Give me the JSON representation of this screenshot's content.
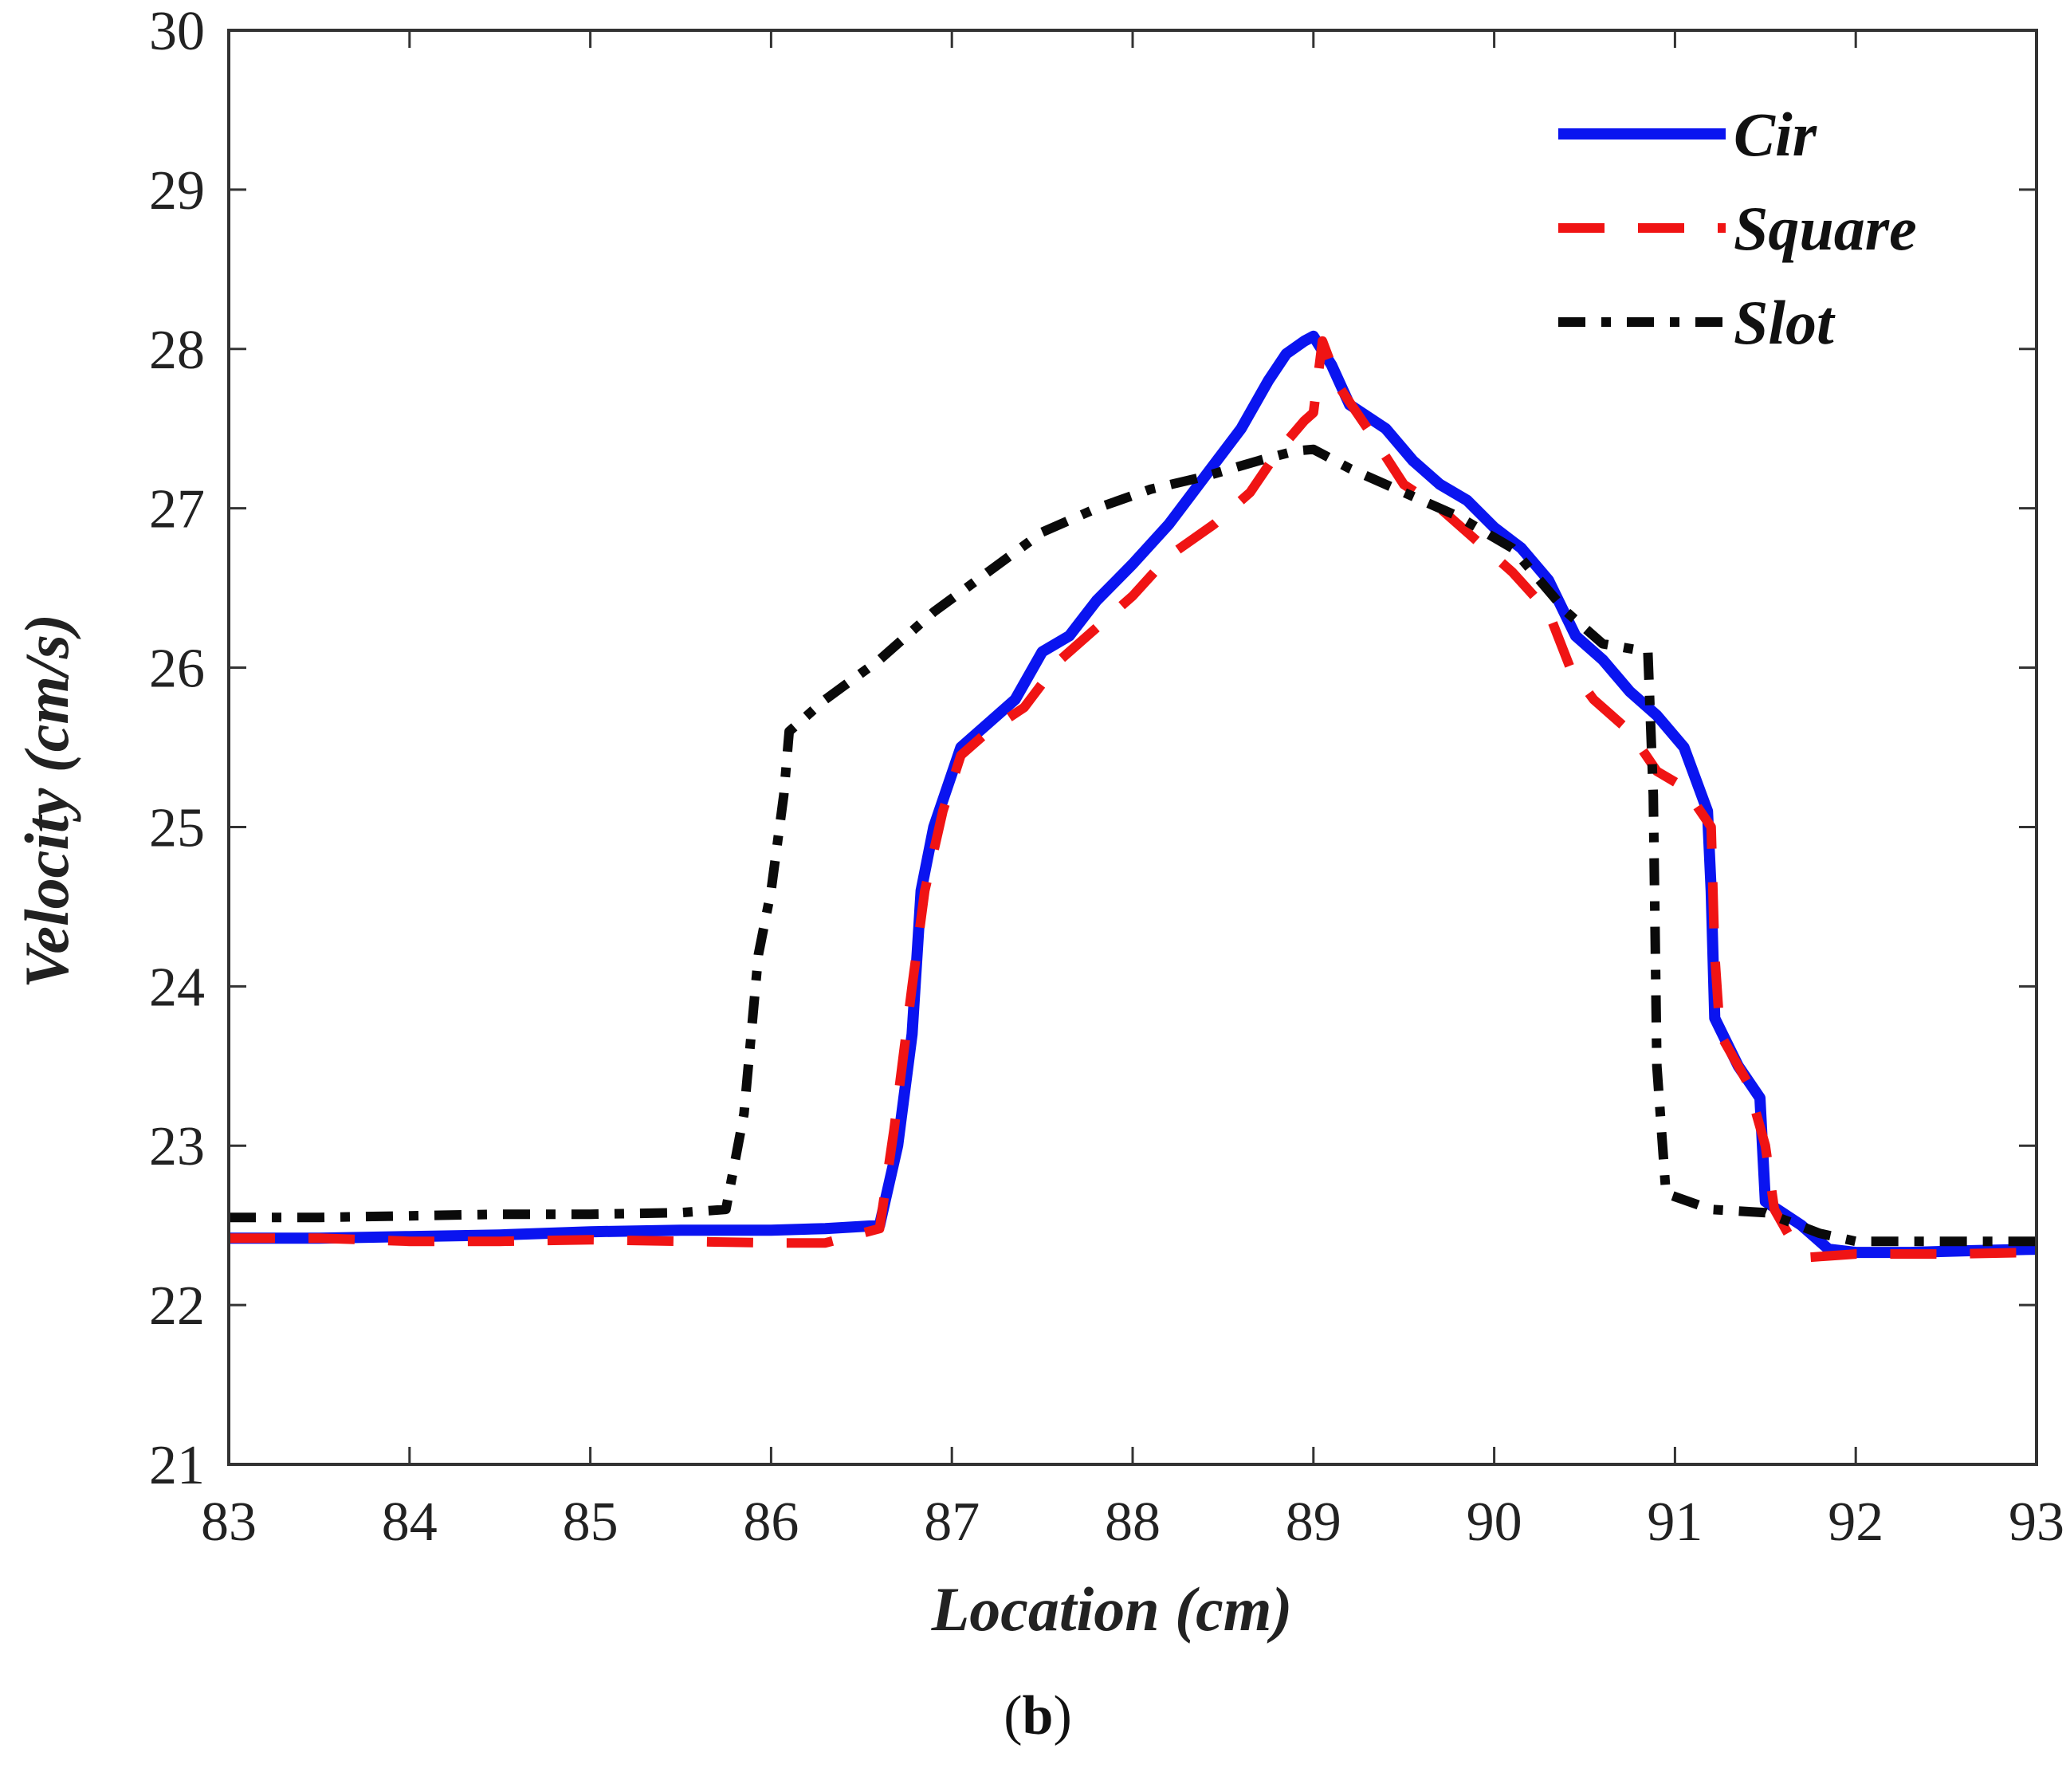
{
  "chart_data": {
    "type": "line",
    "title": "",
    "xlabel": "Location (cm)",
    "ylabel": "Velocity (cm/s)",
    "xlim": [
      83,
      93
    ],
    "ylim": [
      21,
      30
    ],
    "xticks": [
      "83",
      "84",
      "85",
      "86",
      "87",
      "88",
      "89",
      "90",
      "91",
      "92",
      "93"
    ],
    "yticks": [
      "21",
      "22",
      "23",
      "24",
      "25",
      "26",
      "27",
      "28",
      "29",
      "30"
    ],
    "legend_position": "top-right",
    "panel_label_prefix": "(",
    "panel_label_letter": "b",
    "panel_label_suffix": ")",
    "series": [
      {
        "name": "Cir",
        "color": "#0a14f0",
        "style": "solid",
        "points": [
          [
            83,
            22.42
          ],
          [
            83.5,
            22.42
          ],
          [
            84,
            22.43
          ],
          [
            84.5,
            22.44
          ],
          [
            85,
            22.46
          ],
          [
            85.5,
            22.47
          ],
          [
            86,
            22.47
          ],
          [
            86.3,
            22.48
          ],
          [
            86.6,
            22.5
          ],
          [
            86.7,
            23.0
          ],
          [
            86.78,
            23.7
          ],
          [
            86.83,
            24.6
          ],
          [
            86.9,
            25.0
          ],
          [
            87.05,
            25.5
          ],
          [
            87.2,
            25.65
          ],
          [
            87.35,
            25.8
          ],
          [
            87.5,
            26.1
          ],
          [
            87.65,
            26.2
          ],
          [
            87.8,
            26.42
          ],
          [
            88,
            26.65
          ],
          [
            88.2,
            26.9
          ],
          [
            88.4,
            27.2
          ],
          [
            88.6,
            27.5
          ],
          [
            88.75,
            27.8
          ],
          [
            88.85,
            27.97
          ],
          [
            88.95,
            28.05
          ],
          [
            89,
            28.08
          ],
          [
            89.1,
            27.9
          ],
          [
            89.2,
            27.65
          ],
          [
            89.4,
            27.5
          ],
          [
            89.55,
            27.3
          ],
          [
            89.7,
            27.15
          ],
          [
            89.85,
            27.05
          ],
          [
            90,
            26.88
          ],
          [
            90.15,
            26.75
          ],
          [
            90.3,
            26.55
          ],
          [
            90.45,
            26.2
          ],
          [
            90.6,
            26.05
          ],
          [
            90.75,
            25.85
          ],
          [
            90.9,
            25.7
          ],
          [
            91.05,
            25.5
          ],
          [
            91.18,
            25.1
          ],
          [
            91.2,
            24.6
          ],
          [
            91.22,
            23.8
          ],
          [
            91.35,
            23.5
          ],
          [
            91.47,
            23.3
          ],
          [
            91.5,
            22.65
          ],
          [
            91.7,
            22.5
          ],
          [
            91.85,
            22.35
          ],
          [
            92,
            22.33
          ],
          [
            92.3,
            22.33
          ],
          [
            92.6,
            22.34
          ],
          [
            93,
            22.35
          ]
        ]
      },
      {
        "name": "Square",
        "color": "#f01414",
        "style": "dashed",
        "points": [
          [
            83,
            22.42
          ],
          [
            83.5,
            22.42
          ],
          [
            84,
            22.4
          ],
          [
            84.5,
            22.4
          ],
          [
            85,
            22.41
          ],
          [
            85.5,
            22.4
          ],
          [
            86,
            22.39
          ],
          [
            86.3,
            22.39
          ],
          [
            86.6,
            22.48
          ],
          [
            86.68,
            23.1
          ],
          [
            86.78,
            24.0
          ],
          [
            86.85,
            24.6
          ],
          [
            86.95,
            25.1
          ],
          [
            87.05,
            25.45
          ],
          [
            87.2,
            25.6
          ],
          [
            87.4,
            25.75
          ],
          [
            87.6,
            26.05
          ],
          [
            87.8,
            26.25
          ],
          [
            88,
            26.45
          ],
          [
            88.2,
            26.7
          ],
          [
            88.45,
            26.9
          ],
          [
            88.65,
            27.1
          ],
          [
            88.8,
            27.35
          ],
          [
            88.95,
            27.55
          ],
          [
            89,
            27.6
          ],
          [
            89.05,
            28.05
          ],
          [
            89.15,
            27.75
          ],
          [
            89.3,
            27.5
          ],
          [
            89.5,
            27.15
          ],
          [
            89.7,
            27.0
          ],
          [
            89.9,
            26.8
          ],
          [
            90.1,
            26.6
          ],
          [
            90.3,
            26.35
          ],
          [
            90.42,
            26.0
          ],
          [
            90.55,
            25.8
          ],
          [
            90.75,
            25.6
          ],
          [
            90.9,
            25.35
          ],
          [
            91.05,
            25.25
          ],
          [
            91.2,
            25.0
          ],
          [
            91.22,
            24.2
          ],
          [
            91.25,
            23.7
          ],
          [
            91.4,
            23.4
          ],
          [
            91.5,
            23.0
          ],
          [
            91.55,
            22.6
          ],
          [
            91.65,
            22.4
          ],
          [
            91.75,
            22.3
          ],
          [
            92,
            22.32
          ],
          [
            92.5,
            22.32
          ],
          [
            93,
            22.33
          ]
        ]
      },
      {
        "name": "Slot",
        "color": "#0a0a0a",
        "style": "dash-dot",
        "points": [
          [
            83,
            22.55
          ],
          [
            83.5,
            22.55
          ],
          [
            84,
            22.56
          ],
          [
            84.5,
            22.57
          ],
          [
            85,
            22.57
          ],
          [
            85.5,
            22.58
          ],
          [
            85.75,
            22.6
          ],
          [
            85.85,
            23.2
          ],
          [
            85.93,
            24.2
          ],
          [
            86.0,
            24.6
          ],
          [
            86.07,
            25.2
          ],
          [
            86.1,
            25.6
          ],
          [
            86.3,
            25.8
          ],
          [
            86.6,
            26.05
          ],
          [
            86.9,
            26.35
          ],
          [
            87.2,
            26.6
          ],
          [
            87.5,
            26.85
          ],
          [
            87.8,
            27.0
          ],
          [
            88.1,
            27.12
          ],
          [
            88.4,
            27.2
          ],
          [
            88.7,
            27.3
          ],
          [
            88.9,
            27.36
          ],
          [
            89,
            27.37
          ],
          [
            89.2,
            27.25
          ],
          [
            89.5,
            27.1
          ],
          [
            89.8,
            26.95
          ],
          [
            90.1,
            26.75
          ],
          [
            90.4,
            26.35
          ],
          [
            90.6,
            26.15
          ],
          [
            90.85,
            26.1
          ],
          [
            90.88,
            25.2
          ],
          [
            90.9,
            23.5
          ],
          [
            90.95,
            22.7
          ],
          [
            91.2,
            22.6
          ],
          [
            91.5,
            22.58
          ],
          [
            91.8,
            22.45
          ],
          [
            92,
            22.4
          ],
          [
            92.5,
            22.4
          ],
          [
            93,
            22.4
          ]
        ]
      }
    ]
  }
}
